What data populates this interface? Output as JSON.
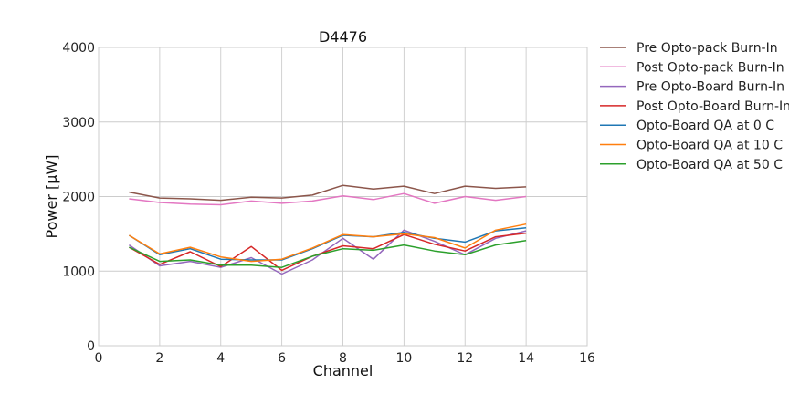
{
  "chart_data": {
    "type": "line",
    "title": "D4476",
    "xlabel": "Channel",
    "ylabel": "Power [μW]",
    "xlim": [
      0,
      16
    ],
    "ylim": [
      0,
      4000
    ],
    "xticks": [
      0,
      2,
      4,
      6,
      8,
      10,
      12,
      14,
      16
    ],
    "yticks": [
      0,
      1000,
      2000,
      3000,
      4000
    ],
    "grid": true,
    "legend_position": "outside-right",
    "series": [
      {
        "name": "Pre Opto-pack Burn-In",
        "color": "#8c564b",
        "x": [
          1,
          2,
          3,
          4,
          5,
          6,
          7,
          8,
          9,
          10,
          11,
          12,
          13,
          14
        ],
        "y": [
          2060,
          1980,
          1970,
          1950,
          1990,
          1980,
          2020,
          2150,
          2100,
          2140,
          2040,
          2140,
          2110,
          2130
        ]
      },
      {
        "name": "Post Opto-pack Burn-In",
        "color": "#e377c2",
        "x": [
          1,
          2,
          3,
          4,
          5,
          6,
          7,
          8,
          9,
          10,
          11,
          12,
          13,
          14
        ],
        "y": [
          1970,
          1920,
          1900,
          1890,
          1940,
          1910,
          1940,
          2010,
          1960,
          2040,
          1910,
          2000,
          1950,
          2000
        ]
      },
      {
        "name": "Pre Opto-Board Burn-In",
        "color": "#9467bd",
        "x": [
          1,
          2,
          3,
          4,
          5,
          6,
          7,
          8,
          9,
          10,
          11,
          12,
          13,
          14
        ],
        "y": [
          1350,
          1070,
          1130,
          1050,
          1180,
          960,
          1150,
          1440,
          1160,
          1550,
          1400,
          1220,
          1440,
          1540
        ]
      },
      {
        "name": "Post Opto-Board Burn-In",
        "color": "#d62728",
        "x": [
          1,
          2,
          3,
          4,
          5,
          6,
          7,
          8,
          9,
          10,
          11,
          12,
          13,
          14
        ],
        "y": [
          1320,
          1090,
          1260,
          1060,
          1330,
          1010,
          1200,
          1340,
          1300,
          1490,
          1360,
          1270,
          1460,
          1510
        ]
      },
      {
        "name": "Opto-Board QA at 0 C",
        "color": "#1f77b4",
        "x": [
          1,
          2,
          3,
          4,
          5,
          6,
          7,
          8,
          9,
          10,
          11,
          12,
          13,
          14
        ],
        "y": [
          1480,
          1220,
          1300,
          1160,
          1150,
          1150,
          1300,
          1480,
          1460,
          1520,
          1440,
          1390,
          1540,
          1580
        ]
      },
      {
        "name": "Opto-Board QA at 10 C",
        "color": "#ff7f0e",
        "x": [
          1,
          2,
          3,
          4,
          5,
          6,
          7,
          8,
          9,
          10,
          11,
          12,
          13,
          14
        ],
        "y": [
          1480,
          1230,
          1320,
          1190,
          1130,
          1160,
          1310,
          1490,
          1460,
          1500,
          1450,
          1310,
          1550,
          1630
        ]
      },
      {
        "name": "Opto-Board QA at 50 C",
        "color": "#2ca02c",
        "x": [
          1,
          2,
          3,
          4,
          5,
          6,
          7,
          8,
          9,
          10,
          11,
          12,
          13,
          14
        ],
        "y": [
          1320,
          1130,
          1150,
          1080,
          1080,
          1050,
          1200,
          1300,
          1280,
          1350,
          1270,
          1220,
          1350,
          1410
        ]
      }
    ]
  }
}
